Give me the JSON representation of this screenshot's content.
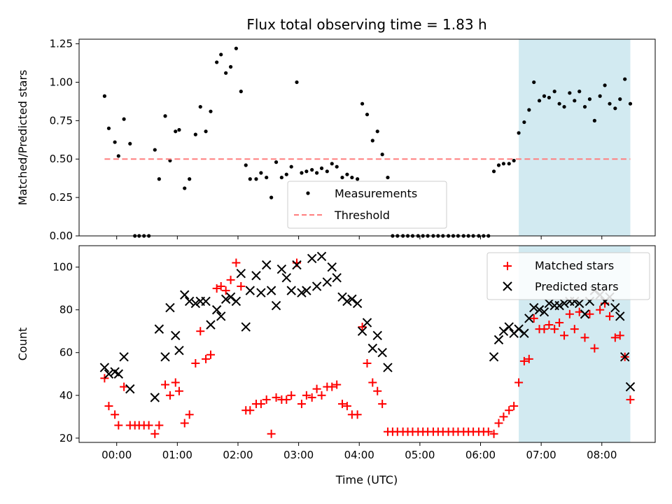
{
  "chart_data": [
    {
      "type": "scatter",
      "title": "Flux total observing time = 1.83 h",
      "xlabel": "",
      "ylabel": "Matched/Predicted stars",
      "ylim": [
        0,
        1.28
      ],
      "yticks": [
        0.0,
        0.25,
        0.5,
        0.75,
        1.0,
        1.25
      ],
      "ytick_labels": [
        "0.00",
        "0.25",
        "0.50",
        "0.75",
        "1.00",
        "1.25"
      ],
      "xlim_hours": [
        -0.62,
        8.88
      ],
      "xticks_hours": [
        0,
        1,
        2,
        3,
        4,
        5,
        6,
        7,
        8
      ],
      "shaded_span_hours": [
        6.63,
        8.47
      ],
      "shaded_color": "#add8e6",
      "legend_position": "lower-center",
      "series": [
        {
          "name": "Measurements",
          "marker": "dot",
          "color": "#000000",
          "x": [
            -0.2,
            -0.13,
            -0.03,
            0.03,
            0.12,
            0.22,
            0.3,
            0.37,
            0.45,
            0.53,
            0.63,
            0.7,
            0.8,
            0.88,
            0.97,
            1.03,
            1.12,
            1.2,
            1.3,
            1.38,
            1.47,
            1.55,
            1.65,
            1.72,
            1.8,
            1.88,
            1.97,
            2.05,
            2.13,
            2.2,
            2.3,
            2.38,
            2.47,
            2.55,
            2.63,
            2.72,
            2.8,
            2.88,
            2.97,
            3.05,
            3.13,
            3.22,
            3.3,
            3.38,
            3.47,
            3.55,
            3.63,
            3.72,
            3.8,
            3.88,
            3.97,
            4.05,
            4.13,
            4.22,
            4.3,
            4.38,
            4.47,
            4.55,
            4.63,
            4.72,
            4.8,
            4.88,
            4.97,
            5.05,
            5.13,
            5.22,
            5.3,
            5.38,
            5.47,
            5.55,
            5.63,
            5.72,
            5.8,
            5.88,
            5.97,
            6.05,
            6.13,
            6.22,
            6.3,
            6.38,
            6.47,
            6.55,
            6.63,
            6.72,
            6.8,
            6.88,
            6.97,
            7.05,
            7.13,
            7.22,
            7.3,
            7.38,
            7.47,
            7.55,
            7.63,
            7.72,
            7.8,
            7.88,
            7.97,
            8.05,
            8.13,
            8.22,
            8.3,
            8.38,
            8.47
          ],
          "y": [
            0.91,
            0.7,
            0.61,
            0.52,
            0.76,
            0.6,
            0.0,
            0.0,
            0.0,
            0.0,
            0.56,
            0.37,
            0.78,
            0.49,
            0.68,
            0.69,
            0.31,
            0.37,
            0.66,
            0.84,
            0.68,
            0.81,
            1.13,
            1.18,
            1.06,
            1.1,
            1.22,
            0.94,
            0.46,
            0.37,
            0.37,
            0.41,
            0.38,
            0.25,
            0.48,
            0.38,
            0.4,
            0.45,
            1.0,
            0.41,
            0.42,
            0.43,
            0.41,
            0.44,
            0.42,
            0.47,
            0.45,
            0.38,
            0.4,
            0.38,
            0.37,
            0.86,
            0.79,
            0.62,
            0.68,
            0.53,
            0.38,
            0.0,
            0.0,
            0.0,
            0.0,
            0.0,
            0.0,
            0.0,
            0.0,
            0.0,
            0.0,
            0.0,
            0.0,
            0.0,
            0.0,
            0.0,
            0.0,
            0.0,
            0.0,
            0.0,
            0.0,
            0.42,
            0.46,
            0.47,
            0.47,
            0.49,
            0.67,
            0.74,
            0.82,
            1.0,
            0.88,
            0.91,
            0.9,
            0.94,
            0.86,
            0.84,
            0.93,
            0.88,
            0.94,
            0.84,
            0.89,
            0.75,
            0.91,
            0.98,
            0.86,
            0.83,
            0.89,
            1.02,
            0.86
          ]
        },
        {
          "name": "Threshold",
          "marker": "dashed-line",
          "color": "#ff7f7f",
          "x": [
            -0.2,
            8.47
          ],
          "y": [
            0.5,
            0.5
          ]
        }
      ]
    },
    {
      "type": "scatter",
      "title": "",
      "xlabel": "Time (UTC)",
      "ylabel": "Count",
      "ylim": [
        18,
        110
      ],
      "yticks": [
        20,
        40,
        60,
        80,
        100
      ],
      "ytick_labels": [
        "20",
        "40",
        "60",
        "80",
        "100"
      ],
      "xlim_hours": [
        -0.62,
        8.88
      ],
      "xticks_hours": [
        0,
        1,
        2,
        3,
        4,
        5,
        6,
        7,
        8
      ],
      "xtick_labels": [
        "00:00",
        "01:00",
        "02:00",
        "03:00",
        "04:00",
        "05:00",
        "06:00",
        "07:00",
        "08:00"
      ],
      "shaded_span_hours": [
        6.63,
        8.47
      ],
      "shaded_color": "#add8e6",
      "legend_position": "top-right",
      "series": [
        {
          "name": "Matched stars",
          "marker": "plus",
          "color": "#ff0000",
          "x": [
            -0.2,
            -0.13,
            -0.03,
            0.03,
            0.12,
            0.22,
            0.3,
            0.37,
            0.45,
            0.53,
            0.63,
            0.7,
            0.8,
            0.88,
            0.97,
            1.03,
            1.12,
            1.2,
            1.3,
            1.38,
            1.47,
            1.55,
            1.65,
            1.72,
            1.8,
            1.88,
            1.97,
            2.05,
            2.13,
            2.2,
            2.3,
            2.38,
            2.47,
            2.55,
            2.63,
            2.72,
            2.8,
            2.88,
            2.97,
            3.05,
            3.13,
            3.22,
            3.3,
            3.38,
            3.47,
            3.55,
            3.63,
            3.72,
            3.8,
            3.88,
            3.97,
            4.05,
            4.13,
            4.22,
            4.3,
            4.38,
            4.47,
            4.55,
            4.63,
            4.72,
            4.8,
            4.88,
            4.97,
            5.05,
            5.13,
            5.22,
            5.3,
            5.38,
            5.47,
            5.55,
            5.63,
            5.72,
            5.8,
            5.88,
            5.97,
            6.05,
            6.13,
            6.22,
            6.3,
            6.38,
            6.47,
            6.55,
            6.63,
            6.72,
            6.8,
            6.88,
            6.97,
            7.05,
            7.13,
            7.22,
            7.3,
            7.38,
            7.47,
            7.55,
            7.63,
            7.72,
            7.8,
            7.88,
            7.97,
            8.05,
            8.13,
            8.22,
            8.3,
            8.38,
            8.47
          ],
          "y": [
            48,
            35,
            31,
            26,
            44,
            26,
            26,
            26,
            26,
            26,
            22,
            26,
            45,
            40,
            46,
            42,
            27,
            31,
            55,
            70,
            57,
            59,
            90,
            91,
            89,
            94,
            102,
            91,
            33,
            33,
            36,
            36,
            38,
            22,
            39,
            38,
            38,
            40,
            102,
            36,
            40,
            39,
            43,
            40,
            44,
            44,
            45,
            36,
            35,
            31,
            31,
            72,
            55,
            46,
            42,
            36,
            23,
            23,
            23,
            23,
            23,
            23,
            23,
            23,
            23,
            23,
            23,
            23,
            23,
            23,
            23,
            23,
            23,
            23,
            23,
            23,
            23,
            22,
            27,
            30,
            33,
            35,
            46,
            56,
            57,
            76,
            71,
            71,
            73,
            71,
            74,
            68,
            78,
            71,
            79,
            67,
            78,
            62,
            80,
            83,
            77,
            67,
            68,
            58,
            38
          ]
        },
        {
          "name": "Predicted stars",
          "marker": "x",
          "color": "#000000",
          "x": [
            -0.2,
            -0.13,
            -0.03,
            0.03,
            0.12,
            0.22,
            0.63,
            0.7,
            0.8,
            0.88,
            0.97,
            1.03,
            1.12,
            1.2,
            1.3,
            1.38,
            1.47,
            1.55,
            1.65,
            1.72,
            1.8,
            1.88,
            1.97,
            2.05,
            2.13,
            2.2,
            2.3,
            2.38,
            2.47,
            2.55,
            2.63,
            2.72,
            2.8,
            2.88,
            2.97,
            3.05,
            3.13,
            3.22,
            3.3,
            3.38,
            3.47,
            3.55,
            3.63,
            3.72,
            3.8,
            3.88,
            3.97,
            4.05,
            4.13,
            4.22,
            4.3,
            4.38,
            4.47,
            6.22,
            6.3,
            6.38,
            6.47,
            6.55,
            6.63,
            6.72,
            6.8,
            6.88,
            6.97,
            7.05,
            7.13,
            7.22,
            7.3,
            7.38,
            7.47,
            7.55,
            7.63,
            7.72,
            7.8,
            7.88,
            7.97,
            8.05,
            8.13,
            8.22,
            8.3,
            8.38,
            8.47
          ],
          "y": [
            53,
            50,
            51,
            50,
            58,
            43,
            39,
            71,
            58,
            81,
            68,
            61,
            87,
            84,
            83,
            84,
            84,
            73,
            80,
            77,
            85,
            86,
            84,
            97,
            72,
            89,
            96,
            88,
            101,
            89,
            82,
            99,
            95,
            89,
            101,
            88,
            89,
            104,
            91,
            105,
            93,
            100,
            95,
            86,
            84,
            85,
            83,
            70,
            74,
            62,
            68,
            60,
            53,
            58,
            66,
            70,
            72,
            69,
            71,
            69,
            76,
            81,
            80,
            79,
            83,
            82,
            82,
            83,
            84,
            84,
            83,
            78,
            84,
            89,
            87,
            84,
            86,
            81,
            77,
            58,
            44
          ]
        }
      ]
    }
  ]
}
